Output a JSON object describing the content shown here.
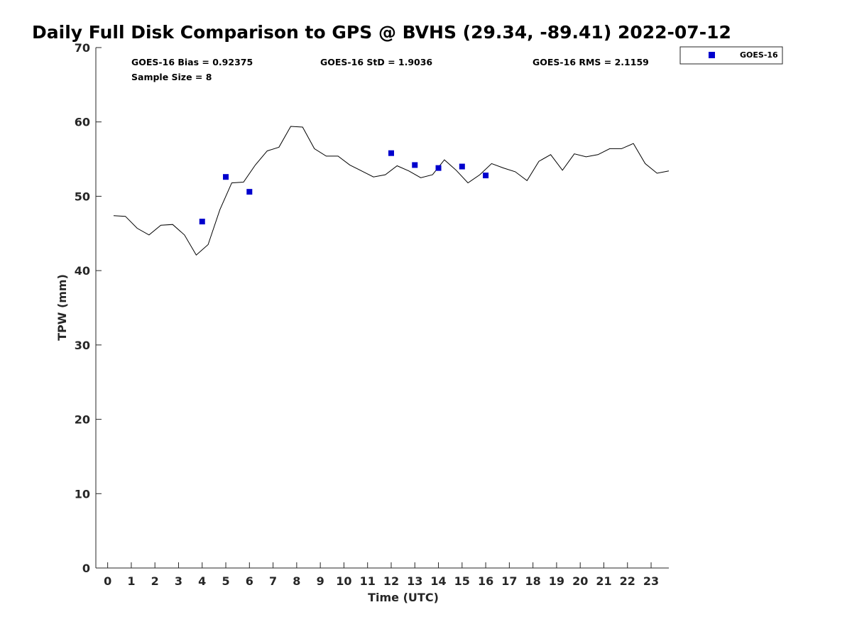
{
  "chart_data": {
    "type": "scatter",
    "title": "Daily Full Disk Comparison to GPS @ BVHS (29.34, -89.41) 2022-07-12",
    "xlabel": "Time (UTC)",
    "ylabel": "TPW (mm)",
    "xlim": [
      -0.5,
      23.75
    ],
    "ylim": [
      0,
      70
    ],
    "x_ticks": [
      0,
      1,
      2,
      3,
      4,
      5,
      6,
      7,
      8,
      9,
      10,
      11,
      12,
      13,
      14,
      15,
      16,
      17,
      18,
      19,
      20,
      21,
      22,
      23
    ],
    "y_ticks": [
      0,
      10,
      20,
      30,
      40,
      50,
      60,
      70
    ],
    "grid": false,
    "legend_position": "top-right-outside",
    "stats": {
      "bias": "GOES-16 Bias = 0.92375",
      "std": "GOES-16 StD = 1.9036",
      "rms": "GOES-16 RMS = 2.1159",
      "sample": "Sample Size = 8"
    },
    "gps_line": {
      "color": "#000000",
      "x": [
        0.25,
        0.75,
        1.25,
        1.75,
        2.25,
        2.75,
        3.25,
        3.75,
        4.25,
        4.75,
        5.25,
        5.75,
        6.25,
        6.75,
        7.25,
        7.75,
        8.25,
        8.75,
        9.25,
        9.75,
        10.25,
        10.75,
        11.25,
        11.75,
        12.25,
        12.75,
        13.25,
        13.75,
        14.25,
        14.75,
        15.25,
        15.75,
        16.25,
        16.75,
        17.25,
        17.75,
        18.25,
        18.75,
        19.25,
        19.75,
        20.25,
        20.75,
        21.25,
        21.75,
        22.25,
        22.75,
        23.25,
        23.75
      ],
      "y": [
        47.4,
        47.3,
        45.7,
        44.8,
        46.1,
        46.2,
        44.8,
        42.1,
        43.5,
        48.2,
        51.8,
        51.9,
        54.2,
        56.1,
        56.6,
        59.4,
        59.3,
        56.4,
        55.4,
        55.4,
        54.2,
        53.4,
        52.6,
        52.9,
        54.1,
        53.4,
        52.5,
        52.9,
        54.9,
        53.5,
        51.8,
        52.9,
        54.4,
        53.8,
        53.3,
        52.1,
        54.7,
        55.6,
        53.5,
        55.7,
        55.3,
        55.6,
        56.4,
        56.4,
        57.1,
        54.4,
        53.1,
        53.4
      ]
    },
    "series": [
      {
        "name": "GOES-16",
        "color": "#0000cd",
        "x": [
          4,
          5,
          6,
          12,
          13,
          14,
          15,
          16
        ],
        "y": [
          46.6,
          52.6,
          50.6,
          55.8,
          54.2,
          53.8,
          54.0,
          52.8
        ]
      }
    ]
  }
}
